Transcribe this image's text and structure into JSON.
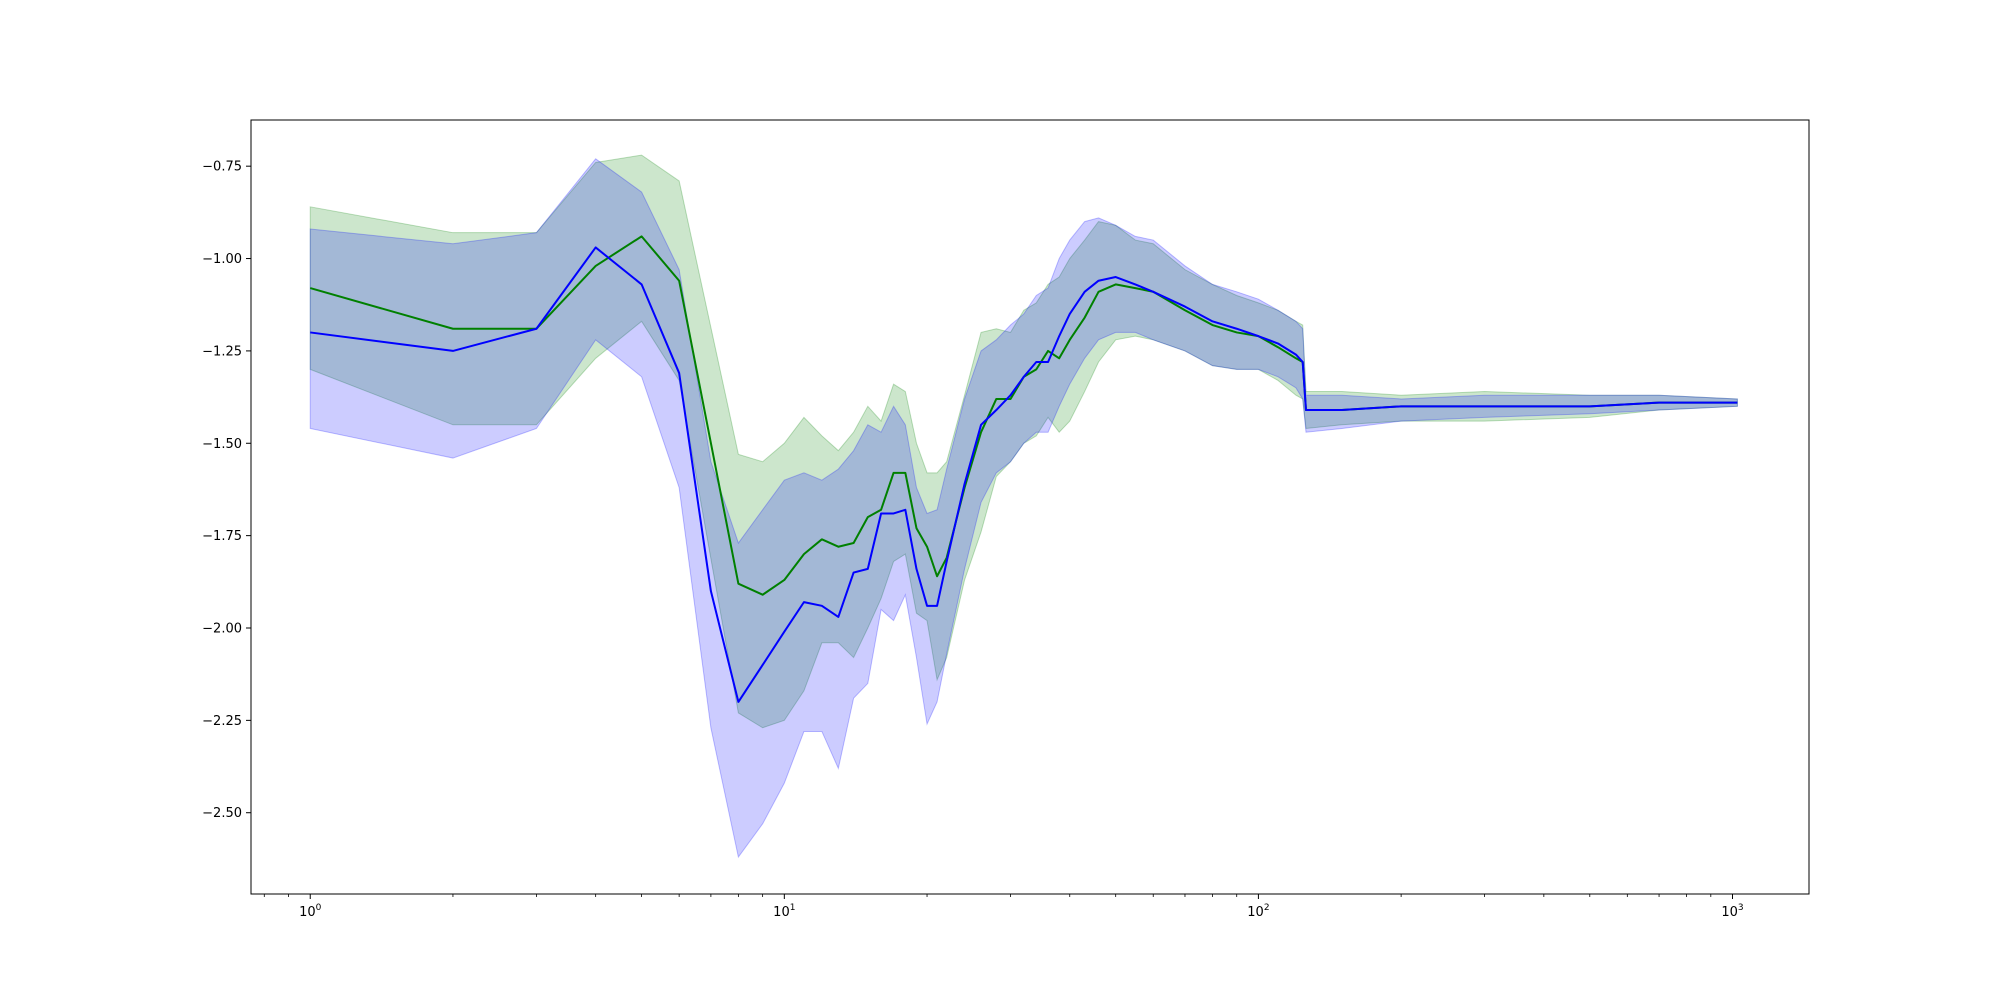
{
  "chart_data": {
    "type": "line",
    "title": "",
    "xlabel": "",
    "ylabel": "",
    "x_scale": "log",
    "xlim": [
      0.75,
      1450
    ],
    "ylim": [
      -2.72,
      -0.625
    ],
    "grid": false,
    "legend": "none",
    "x_ticks": [
      {
        "value": 1,
        "base": "10",
        "exp": "0"
      },
      {
        "value": 10,
        "base": "10",
        "exp": "1"
      },
      {
        "value": 100,
        "base": "10",
        "exp": "2"
      },
      {
        "value": 1000,
        "base": "10",
        "exp": "3"
      }
    ],
    "y_ticks": [
      {
        "value": -0.75,
        "label": "−0.75"
      },
      {
        "value": -1.0,
        "label": "−1.00"
      },
      {
        "value": -1.25,
        "label": "−1.25"
      },
      {
        "value": -1.5,
        "label": "−1.50"
      },
      {
        "value": -1.75,
        "label": "−1.75"
      },
      {
        "value": -2.0,
        "label": "−2.00"
      },
      {
        "value": -2.25,
        "label": "−2.25"
      },
      {
        "value": -2.5,
        "label": "−2.50"
      }
    ],
    "series": [
      {
        "color": "#008000",
        "band_color": "#008000",
        "band_opacity": 0.2,
        "x": [
          1,
          2,
          3,
          4,
          5,
          6,
          8,
          9,
          10,
          11,
          12,
          13,
          14,
          15,
          16,
          17,
          18,
          19,
          20,
          21,
          22,
          24,
          26,
          28,
          30,
          32,
          34,
          36,
          38,
          40,
          43,
          46,
          50,
          55,
          60,
          70,
          80,
          90,
          100,
          110,
          120,
          124,
          126,
          150,
          200,
          300,
          500,
          700,
          1024
        ],
        "y": [
          -1.08,
          -1.19,
          -1.19,
          -1.02,
          -0.94,
          -1.06,
          -1.88,
          -1.91,
          -1.87,
          -1.8,
          -1.76,
          -1.78,
          -1.77,
          -1.7,
          -1.68,
          -1.58,
          -1.58,
          -1.73,
          -1.78,
          -1.86,
          -1.81,
          -1.62,
          -1.47,
          -1.38,
          -1.38,
          -1.32,
          -1.3,
          -1.25,
          -1.27,
          -1.22,
          -1.16,
          -1.09,
          -1.07,
          -1.08,
          -1.09,
          -1.14,
          -1.18,
          -1.2,
          -1.21,
          -1.24,
          -1.27,
          -1.28,
          -1.41,
          -1.41,
          -1.4,
          -1.4,
          -1.4,
          -1.39,
          -1.39
        ],
        "upper": [
          -0.86,
          -0.93,
          -0.93,
          -0.74,
          -0.72,
          -0.79,
          -1.53,
          -1.55,
          -1.5,
          -1.43,
          -1.48,
          -1.52,
          -1.47,
          -1.4,
          -1.44,
          -1.34,
          -1.36,
          -1.5,
          -1.58,
          -1.58,
          -1.55,
          -1.37,
          -1.2,
          -1.19,
          -1.2,
          -1.14,
          -1.12,
          -1.07,
          -1.05,
          -1.0,
          -0.95,
          -0.9,
          -0.91,
          -0.95,
          -0.96,
          -1.03,
          -1.07,
          -1.1,
          -1.12,
          -1.14,
          -1.17,
          -1.18,
          -1.36,
          -1.36,
          -1.37,
          -1.36,
          -1.37,
          -1.37,
          -1.38
        ],
        "lower": [
          -1.3,
          -1.45,
          -1.45,
          -1.27,
          -1.17,
          -1.33,
          -2.23,
          -2.27,
          -2.25,
          -2.17,
          -2.04,
          -2.04,
          -2.08,
          -2.0,
          -1.92,
          -1.82,
          -1.8,
          -1.96,
          -1.98,
          -2.14,
          -2.08,
          -1.87,
          -1.74,
          -1.59,
          -1.55,
          -1.5,
          -1.48,
          -1.43,
          -1.47,
          -1.44,
          -1.36,
          -1.28,
          -1.22,
          -1.21,
          -1.22,
          -1.25,
          -1.29,
          -1.3,
          -1.3,
          -1.33,
          -1.37,
          -1.38,
          -1.46,
          -1.45,
          -1.44,
          -1.44,
          -1.43,
          -1.41,
          -1.4
        ]
      },
      {
        "color": "#0000ff",
        "band_color": "#0000ff",
        "band_opacity": 0.2,
        "x": [
          1,
          2,
          3,
          4,
          5,
          6,
          7,
          8,
          9,
          10,
          11,
          12,
          13,
          14,
          15,
          16,
          17,
          18,
          19,
          20,
          21,
          22,
          24,
          26,
          28,
          30,
          32,
          34,
          36,
          38,
          40,
          43,
          46,
          50,
          55,
          60,
          70,
          80,
          90,
          100,
          110,
          120,
          124,
          126,
          150,
          200,
          300,
          500,
          700,
          1024
        ],
        "y": [
          -1.2,
          -1.25,
          -1.19,
          -0.97,
          -1.07,
          -1.31,
          -1.9,
          -2.2,
          -2.1,
          -2.01,
          -1.93,
          -1.94,
          -1.97,
          -1.85,
          -1.84,
          -1.69,
          -1.69,
          -1.68,
          -1.84,
          -1.94,
          -1.94,
          -1.82,
          -1.61,
          -1.45,
          -1.41,
          -1.37,
          -1.32,
          -1.28,
          -1.28,
          -1.21,
          -1.15,
          -1.09,
          -1.06,
          -1.05,
          -1.07,
          -1.09,
          -1.13,
          -1.17,
          -1.19,
          -1.21,
          -1.23,
          -1.26,
          -1.28,
          -1.41,
          -1.41,
          -1.4,
          -1.4,
          -1.4,
          -1.39,
          -1.39
        ],
        "upper": [
          -0.92,
          -0.96,
          -0.93,
          -0.73,
          -0.82,
          -1.03,
          -1.55,
          -1.77,
          -1.68,
          -1.6,
          -1.58,
          -1.6,
          -1.57,
          -1.52,
          -1.45,
          -1.47,
          -1.4,
          -1.45,
          -1.62,
          -1.69,
          -1.68,
          -1.57,
          -1.38,
          -1.25,
          -1.22,
          -1.18,
          -1.15,
          -1.1,
          -1.08,
          -1.0,
          -0.95,
          -0.9,
          -0.89,
          -0.91,
          -0.94,
          -0.95,
          -1.02,
          -1.07,
          -1.09,
          -1.11,
          -1.14,
          -1.17,
          -1.19,
          -1.37,
          -1.37,
          -1.38,
          -1.37,
          -1.37,
          -1.37,
          -1.38
        ],
        "lower": [
          -1.46,
          -1.54,
          -1.46,
          -1.22,
          -1.32,
          -1.62,
          -2.27,
          -2.62,
          -2.53,
          -2.42,
          -2.28,
          -2.28,
          -2.38,
          -2.19,
          -2.15,
          -1.95,
          -1.98,
          -1.91,
          -2.08,
          -2.26,
          -2.2,
          -2.07,
          -1.84,
          -1.66,
          -1.58,
          -1.55,
          -1.5,
          -1.47,
          -1.47,
          -1.4,
          -1.34,
          -1.27,
          -1.22,
          -1.2,
          -1.2,
          -1.22,
          -1.25,
          -1.29,
          -1.3,
          -1.3,
          -1.32,
          -1.35,
          -1.38,
          -1.47,
          -1.46,
          -1.44,
          -1.43,
          -1.42,
          -1.41,
          -1.4
        ]
      }
    ]
  }
}
